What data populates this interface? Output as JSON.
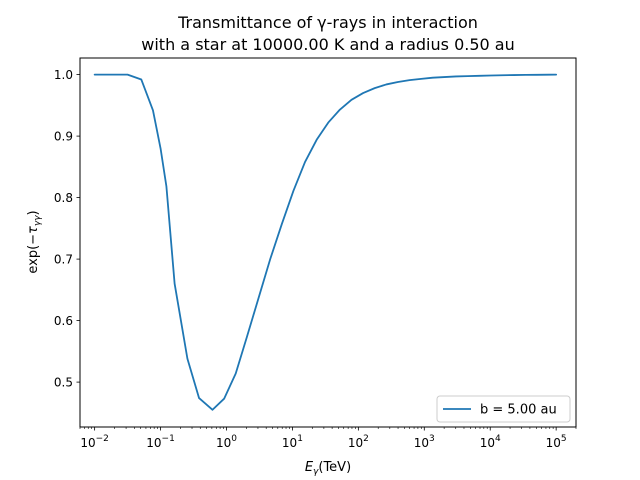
{
  "chart_data": {
    "type": "line",
    "title_line1": "Transmittance of γ-rays in interaction",
    "title_line2": "with a star at 10000.00 K and a radius 0.50 au",
    "xlabel": "Eγ(TeV)",
    "ylabel": "exp(−τγγ)",
    "xscale": "log",
    "xlim": [
      0.006,
      200000
    ],
    "ylim": [
      0.427,
      1.027
    ],
    "x_tick_exponents": [
      "−2",
      "−1",
      "0",
      "1",
      "2",
      "3",
      "4",
      "5"
    ],
    "x_tick_values": [
      0.01,
      0.1,
      1,
      10,
      100,
      1000,
      10000,
      100000
    ],
    "y_ticks": [
      0.5,
      0.6,
      0.7,
      0.8,
      0.9,
      1.0
    ],
    "y_tick_labels": [
      "0.5",
      "0.6",
      "0.7",
      "0.8",
      "0.9",
      "1.0"
    ],
    "legend_position": "lower right",
    "grid": false,
    "series": [
      {
        "name": "b = 5.00 au",
        "color": "#1f77b4",
        "x": [
          0.01,
          0.0178,
          0.0316,
          0.0511,
          0.0767,
          0.1,
          0.1227,
          0.1634,
          0.2556,
          0.3836,
          0.6138,
          0.9205,
          1.3809,
          2.0458,
          3.0687,
          4.6031,
          6.9047,
          10.3571,
          15.5357,
          23.3035,
          34.955,
          52.4327,
          78.649,
          117.9739,
          176.9605,
          265.4408,
          398.1601,
          597.2402,
          895.8608,
          1343.7899,
          2015.6878,
          3023.5349,
          4535.3093,
          6802.9682,
          10204.4574,
          15306.6849,
          22960.0274,
          34439.9822,
          51659.9733,
          77489.96,
          100000
        ],
        "y": [
          1.0,
          1.0,
          1.0,
          0.992,
          0.942,
          0.88,
          0.818,
          0.66,
          0.538,
          0.474,
          0.455,
          0.473,
          0.514,
          0.574,
          0.637,
          0.7,
          0.757,
          0.811,
          0.858,
          0.894,
          0.922,
          0.943,
          0.959,
          0.97,
          0.978,
          0.984,
          0.988,
          0.991,
          0.993,
          0.995,
          0.996,
          0.997,
          0.9975,
          0.998,
          0.9985,
          0.999,
          0.9993,
          0.9995,
          0.9997,
          0.9999,
          1.0
        ]
      }
    ]
  }
}
